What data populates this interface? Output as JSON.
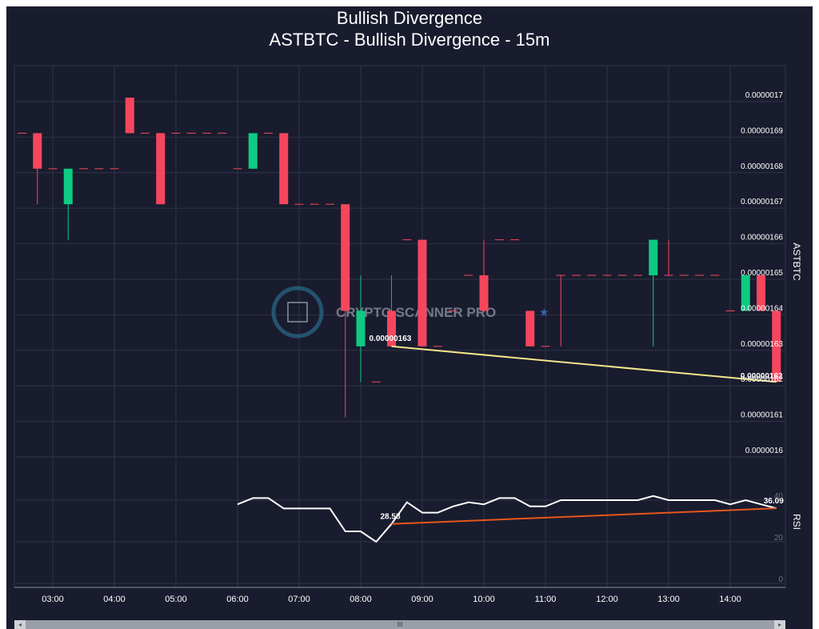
{
  "title": "Bullish Divergence",
  "subtitle": "ASTBTC - Bullish Divergence - 15m",
  "watermark": "CRYPTO SCANNER PRO",
  "colors": {
    "background": "#191c2e",
    "up": "#0ecb81",
    "down": "#f6465d",
    "rsi": "#ffffff",
    "price_divergence": "#f5e58c",
    "rsi_divergence": "#e8561c",
    "grid": "#2f3346"
  },
  "scrollbar": {
    "left_arrow": "◂",
    "right_arrow": "▸",
    "thumb": "III"
  },
  "chart_data": {
    "type": "candlestick",
    "x_ticks": [
      "03:00",
      "04:00",
      "05:00",
      "06:00",
      "07:00",
      "08:00",
      "09:00",
      "10:00",
      "11:00",
      "12:00",
      "13:00",
      "14:00"
    ],
    "price_axis": {
      "label": "ASTBTC",
      "range": [
        1.6e-06,
        1.7e-06
      ],
      "ticks": [
        {
          "value": 1.7e-06,
          "label": "0.0000017"
        },
        {
          "value": 1.69e-06,
          "label": "0.00000169"
        },
        {
          "value": 1.68e-06,
          "label": "0.00000168"
        },
        {
          "value": 1.67e-06,
          "label": "0.00000167"
        },
        {
          "value": 1.66e-06,
          "label": "0.00000166"
        },
        {
          "value": 1.65e-06,
          "label": "0.00000165"
        },
        {
          "value": 1.64e-06,
          "label": "0.00000164"
        },
        {
          "value": 1.63e-06,
          "label": "0.00000163"
        },
        {
          "value": 1.62e-06,
          "label": "0.00000162"
        },
        {
          "value": 1.61e-06,
          "label": "0.00000161"
        },
        {
          "value": 1.6e-06,
          "label": "0.0000016"
        }
      ]
    },
    "rsi_axis": {
      "label": "RSI",
      "range": [
        0,
        45
      ],
      "ticks": [
        0,
        20,
        40
      ]
    },
    "candles": [
      {
        "t": "02:30",
        "o": 169,
        "h": 169,
        "l": 169,
        "c": 169
      },
      {
        "t": "02:45",
        "o": 169,
        "h": 169,
        "l": 167,
        "c": 168
      },
      {
        "t": "03:00",
        "o": 168,
        "h": 168,
        "l": 168,
        "c": 168
      },
      {
        "t": "03:15",
        "o": 167,
        "h": 168,
        "l": 166,
        "c": 168
      },
      {
        "t": "03:30",
        "o": 168,
        "h": 168,
        "l": 168,
        "c": 168
      },
      {
        "t": "03:45",
        "o": 168,
        "h": 168,
        "l": 168,
        "c": 168
      },
      {
        "t": "04:00",
        "o": 168,
        "h": 168,
        "l": 168,
        "c": 168
      },
      {
        "t": "04:15",
        "o": 170,
        "h": 170,
        "l": 169,
        "c": 169
      },
      {
        "t": "04:30",
        "o": 169,
        "h": 169,
        "l": 169,
        "c": 169
      },
      {
        "t": "04:45",
        "o": 169,
        "h": 169,
        "l": 167,
        "c": 167
      },
      {
        "t": "05:00",
        "o": 169,
        "h": 169,
        "l": 169,
        "c": 169
      },
      {
        "t": "05:15",
        "o": 169,
        "h": 169,
        "l": 169,
        "c": 169
      },
      {
        "t": "05:30",
        "o": 169,
        "h": 169,
        "l": 169,
        "c": 169
      },
      {
        "t": "05:45",
        "o": 169,
        "h": 169,
        "l": 169,
        "c": 169
      },
      {
        "t": "06:00",
        "o": 168,
        "h": 168,
        "l": 168,
        "c": 168
      },
      {
        "t": "06:15",
        "o": 168,
        "h": 169,
        "l": 168,
        "c": 169
      },
      {
        "t": "06:30",
        "o": 169,
        "h": 169,
        "l": 169,
        "c": 169
      },
      {
        "t": "06:45",
        "o": 169,
        "h": 169,
        "l": 167,
        "c": 167
      },
      {
        "t": "07:00",
        "o": 167,
        "h": 167,
        "l": 167,
        "c": 167
      },
      {
        "t": "07:15",
        "o": 167,
        "h": 167,
        "l": 167,
        "c": 167
      },
      {
        "t": "07:30",
        "o": 167,
        "h": 167,
        "l": 167,
        "c": 167
      },
      {
        "t": "07:45",
        "o": 167,
        "h": 167,
        "l": 161,
        "c": 164
      },
      {
        "t": "08:00",
        "o": 163,
        "h": 165,
        "l": 162,
        "c": 164
      },
      {
        "t": "08:15",
        "o": 162,
        "h": 162,
        "l": 162,
        "c": 162
      },
      {
        "t": "08:30",
        "o": 164,
        "h": 165,
        "l": 163,
        "c": 163
      },
      {
        "t": "08:45",
        "o": 166,
        "h": 166,
        "l": 166,
        "c": 166
      },
      {
        "t": "09:00",
        "o": 166,
        "h": 166,
        "l": 163,
        "c": 163
      },
      {
        "t": "09:15",
        "o": 163,
        "h": 163,
        "l": 163,
        "c": 163
      },
      {
        "t": "09:30",
        "o": 164,
        "h": 164,
        "l": 164,
        "c": 164
      },
      {
        "t": "09:45",
        "o": 165,
        "h": 165,
        "l": 165,
        "c": 165
      },
      {
        "t": "10:00",
        "o": 165,
        "h": 166,
        "l": 164,
        "c": 164
      },
      {
        "t": "10:15",
        "o": 166,
        "h": 166,
        "l": 166,
        "c": 166
      },
      {
        "t": "10:30",
        "o": 166,
        "h": 166,
        "l": 166,
        "c": 166
      },
      {
        "t": "10:45",
        "o": 164,
        "h": 164,
        "l": 163,
        "c": 163
      },
      {
        "t": "11:00",
        "o": 163,
        "h": 163,
        "l": 163,
        "c": 163
      },
      {
        "t": "11:15",
        "o": 165,
        "h": 165,
        "l": 163,
        "c": 165
      },
      {
        "t": "11:30",
        "o": 165,
        "h": 165,
        "l": 165,
        "c": 165
      },
      {
        "t": "11:45",
        "o": 165,
        "h": 165,
        "l": 165,
        "c": 165
      },
      {
        "t": "12:00",
        "o": 165,
        "h": 165,
        "l": 165,
        "c": 165
      },
      {
        "t": "12:15",
        "o": 165,
        "h": 165,
        "l": 165,
        "c": 165
      },
      {
        "t": "12:30",
        "o": 165,
        "h": 165,
        "l": 165,
        "c": 165
      },
      {
        "t": "12:45",
        "o": 165,
        "h": 166,
        "l": 163,
        "c": 166
      },
      {
        "t": "13:00",
        "o": 165,
        "h": 166,
        "l": 165,
        "c": 165
      },
      {
        "t": "13:15",
        "o": 165,
        "h": 165,
        "l": 165,
        "c": 165
      },
      {
        "t": "13:30",
        "o": 165,
        "h": 165,
        "l": 165,
        "c": 165
      },
      {
        "t": "13:45",
        "o": 165,
        "h": 165,
        "l": 165,
        "c": 165
      },
      {
        "t": "14:00",
        "o": 164,
        "h": 164,
        "l": 164,
        "c": 164
      },
      {
        "t": "14:15",
        "o": 164,
        "h": 165,
        "l": 164,
        "c": 165
      },
      {
        "t": "14:30",
        "o": 165,
        "h": 165,
        "l": 164,
        "c": 164
      },
      {
        "t": "14:45",
        "o": 164,
        "h": 164,
        "l": 162,
        "c": 162
      }
    ],
    "candle_price_scale": 1e-08,
    "rsi": [
      {
        "t": "06:00",
        "v": 38
      },
      {
        "t": "06:15",
        "v": 41
      },
      {
        "t": "06:30",
        "v": 41
      },
      {
        "t": "06:45",
        "v": 36
      },
      {
        "t": "07:00",
        "v": 36
      },
      {
        "t": "07:15",
        "v": 36
      },
      {
        "t": "07:30",
        "v": 36
      },
      {
        "t": "07:45",
        "v": 25
      },
      {
        "t": "08:00",
        "v": 25
      },
      {
        "t": "08:15",
        "v": 20
      },
      {
        "t": "08:30",
        "v": 28.58
      },
      {
        "t": "08:45",
        "v": 39
      },
      {
        "t": "09:00",
        "v": 34
      },
      {
        "t": "09:15",
        "v": 34
      },
      {
        "t": "09:30",
        "v": 37
      },
      {
        "t": "09:45",
        "v": 39
      },
      {
        "t": "10:00",
        "v": 38
      },
      {
        "t": "10:15",
        "v": 41
      },
      {
        "t": "10:30",
        "v": 41
      },
      {
        "t": "10:45",
        "v": 37
      },
      {
        "t": "11:00",
        "v": 37
      },
      {
        "t": "11:15",
        "v": 40
      },
      {
        "t": "11:30",
        "v": 40
      },
      {
        "t": "11:45",
        "v": 40
      },
      {
        "t": "12:00",
        "v": 40
      },
      {
        "t": "12:15",
        "v": 40
      },
      {
        "t": "12:30",
        "v": 40
      },
      {
        "t": "12:45",
        "v": 42
      },
      {
        "t": "13:00",
        "v": 40
      },
      {
        "t": "13:15",
        "v": 40
      },
      {
        "t": "13:30",
        "v": 40
      },
      {
        "t": "13:45",
        "v": 40
      },
      {
        "t": "14:00",
        "v": 38
      },
      {
        "t": "14:15",
        "v": 40
      },
      {
        "t": "14:30",
        "v": 38
      },
      {
        "t": "14:45",
        "v": 36.09
      }
    ],
    "price_divergence": {
      "from": {
        "t": "08:30",
        "price": 1.63e-06,
        "label": "0.00000163"
      },
      "to": {
        "t": "14:45",
        "price": 1.62e-06,
        "label": "0.00000162"
      }
    },
    "rsi_divergence": {
      "from": {
        "t": "08:30",
        "rsi": 28.58,
        "label": "28.58"
      },
      "to": {
        "t": "14:45",
        "rsi": 36.09,
        "label": "36.09"
      }
    }
  }
}
